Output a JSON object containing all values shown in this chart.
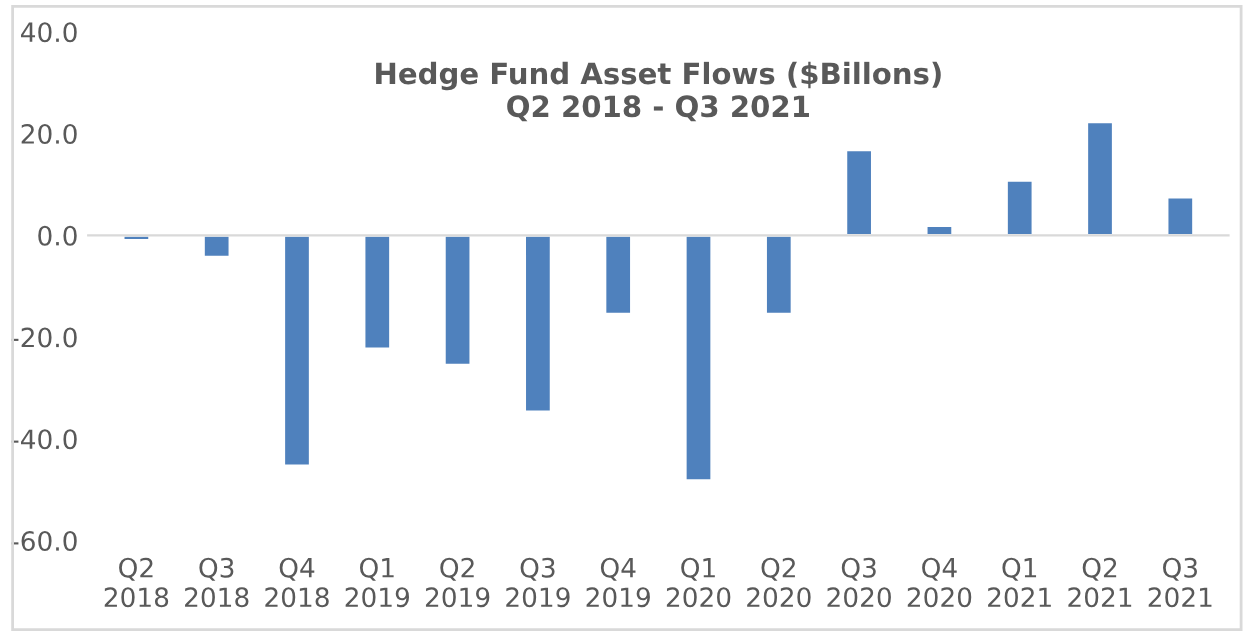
{
  "chart_data": {
    "type": "bar",
    "title": "Hedge Fund Asset Flows ($Billons)\nQ2 2018 - Q3 2021",
    "categories": [
      "Q2\n2018",
      "Q3\n2018",
      "Q4\n2018",
      "Q1\n2019",
      "Q2\n2019",
      "Q3\n2019",
      "Q4\n2019",
      "Q1\n2020",
      "Q2\n2020",
      "Q3\n2020",
      "Q4\n2020",
      "Q1\n2021",
      "Q2\n2021",
      "Q3\n2021"
    ],
    "values": [
      -1.0,
      -4.3,
      -45.3,
      -22.3,
      -25.5,
      -34.7,
      -15.5,
      -48.2,
      -15.5,
      16.8,
      1.9,
      10.8,
      22.3,
      7.5
    ],
    "color": "#4f81bd",
    "ylim": [
      -60,
      40
    ],
    "yticks": [
      {
        "value": -60,
        "label": "-60.0"
      },
      {
        "value": -40,
        "label": "-40.0"
      },
      {
        "value": -20,
        "label": "-20.0"
      },
      {
        "value": 0,
        "label": "0.0"
      },
      {
        "value": 20,
        "label": "20.0"
      },
      {
        "value": 40,
        "label": "40.0"
      }
    ]
  }
}
